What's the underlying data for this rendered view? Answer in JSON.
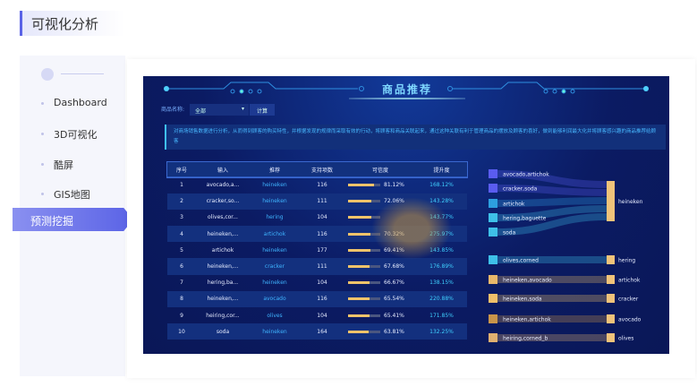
{
  "page_title": "可视化分析",
  "sidebar": {
    "items": [
      {
        "label": "Dashboard"
      },
      {
        "label": "3D可视化"
      },
      {
        "label": "酷屏"
      },
      {
        "label": "GIS地图"
      },
      {
        "label": "预测挖掘",
        "active": true
      }
    ]
  },
  "panel": {
    "title": "商品推荐",
    "filter_label": "商品名称:",
    "filter_value": "全部",
    "compute_button": "计算",
    "description": "对商场销售数据进行分析，从而得到顾客的购买特性，并根据发现的规律而采取有效的行动，将顾客和商品关联起来，通过这种关联有利于管理商品的摆放及顾客的喜好，做到能够利润最大化并将顾客感兴趣的商品推荐给顾客",
    "columns": [
      "序号",
      "输入",
      "推荐",
      "支持项数",
      "可信度",
      "提升度"
    ],
    "rows": [
      {
        "no": "1",
        "input": "avocado,a...",
        "rec": "heineken",
        "support": "116",
        "confidence": "81.12%",
        "conf_value": 81.12,
        "lift": "168.12%"
      },
      {
        "no": "2",
        "input": "cracker,so...",
        "rec": "heineken",
        "support": "111",
        "confidence": "72.06%",
        "conf_value": 72.06,
        "lift": "143.28%"
      },
      {
        "no": "3",
        "input": "olives,cor...",
        "rec": "hering",
        "support": "104",
        "confidence": "",
        "conf_value": 71,
        "lift": "143.77%"
      },
      {
        "no": "4",
        "input": "heineken,...",
        "rec": "artichok",
        "support": "116",
        "confidence": "70.32%",
        "conf_value": 70.32,
        "lift": "275.97%"
      },
      {
        "no": "5",
        "input": "artichok",
        "rec": "heineken",
        "support": "177",
        "confidence": "69.41%",
        "conf_value": 69.41,
        "lift": "143.85%"
      },
      {
        "no": "6",
        "input": "heineken,...",
        "rec": "cracker",
        "support": "111",
        "confidence": "67.68%",
        "conf_value": 67.68,
        "lift": "176.89%"
      },
      {
        "no": "7",
        "input": "hering,ba...",
        "rec": "heineken",
        "support": "104",
        "confidence": "66.67%",
        "conf_value": 66.67,
        "lift": "138.15%"
      },
      {
        "no": "8",
        "input": "heineken,...",
        "rec": "avocado",
        "support": "116",
        "confidence": "65.54%",
        "conf_value": 65.54,
        "lift": "220.88%"
      },
      {
        "no": "9",
        "input": "heiring,cor...",
        "rec": "olives",
        "support": "104",
        "confidence": "65.41%",
        "conf_value": 65.41,
        "lift": "171.85%"
      },
      {
        "no": "10",
        "input": "soda",
        "rec": "heineken",
        "support": "164",
        "confidence": "63.81%",
        "conf_value": 63.81,
        "lift": "132.25%"
      }
    ],
    "sankey": {
      "left": [
        {
          "label": "avocado,artichok",
          "color": "#5a5cf0",
          "target": "heineken"
        },
        {
          "label": "cracker,soda",
          "color": "#5a5cf0",
          "target": "heineken"
        },
        {
          "label": "artichok",
          "color": "#2d9fe0",
          "target": "heineken"
        },
        {
          "label": "hering,baguette",
          "color": "#3ec0e8",
          "target": "heineken"
        },
        {
          "label": "soda",
          "color": "#3ec0e8",
          "target": "heineken"
        },
        {
          "label": "olives,corned",
          "color": "#3ec0e8",
          "target": "hering"
        },
        {
          "label": "heineken,avocado",
          "color": "#e8b86a",
          "target": "artichok"
        },
        {
          "label": "heineken,soda",
          "color": "#f0c06a",
          "target": "cracker"
        },
        {
          "label": "heineken,artichok",
          "color": "#c9954a",
          "target": "avocado"
        },
        {
          "label": "heiring,corned_b",
          "color": "#e0b070",
          "target": "olives"
        }
      ],
      "right": [
        {
          "label": "heineken",
          "color": "#f0c37a"
        },
        {
          "label": "hering",
          "color": "#f0c37a"
        },
        {
          "label": "artichok",
          "color": "#f0c37a"
        },
        {
          "label": "cracker",
          "color": "#f0c37a"
        },
        {
          "label": "avocado",
          "color": "#f0c37a"
        },
        {
          "label": "olives",
          "color": "#f0c37a"
        }
      ]
    }
  }
}
